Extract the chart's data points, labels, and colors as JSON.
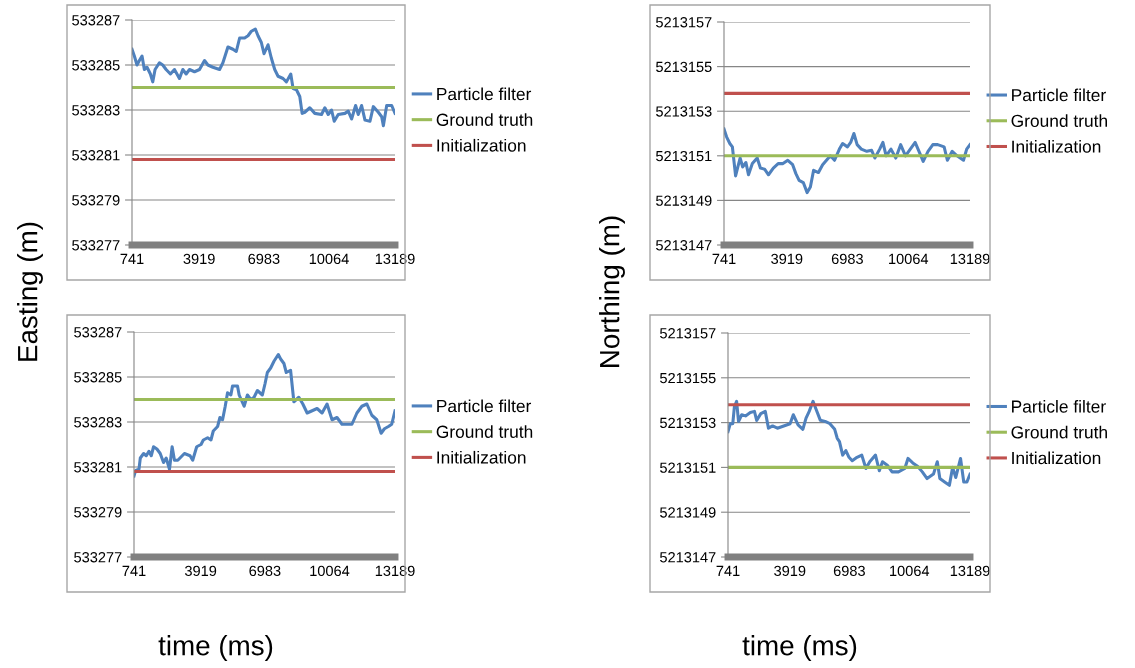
{
  "chart_data": [
    {
      "type": "line",
      "ylabel": "Easting (m)",
      "xlim": [
        741,
        13189
      ],
      "xticks": [
        741,
        3919,
        6983,
        10064,
        13189
      ],
      "ylim": [
        533277,
        533287
      ],
      "yticks": [
        533277,
        533279,
        533281,
        533283,
        533285,
        533287
      ],
      "grid": "y",
      "legend": "right",
      "series": [
        {
          "name": "Particle filter",
          "color": "#4f81bd",
          "x": [
            741,
            852,
            978,
            1089,
            1216,
            1326,
            1453,
            1611,
            1722,
            1833,
            2038,
            2196,
            2355,
            2560,
            2750,
            2987,
            3146,
            3304,
            3462,
            3699,
            3937,
            4174,
            4332,
            4569,
            4886,
            5044,
            5281,
            5519,
            5677,
            5835,
            6072,
            6231,
            6389,
            6579,
            6705,
            6863,
            6990,
            7180,
            7338,
            7496,
            7654,
            7892,
            8050,
            8256,
            8366,
            8524,
            8682,
            8793,
            8920,
            9157,
            9394,
            9711,
            9869,
            10027,
            10186,
            10312,
            10502,
            10818,
            10977,
            11135,
            11325,
            11451,
            11609,
            11768,
            12005,
            12163,
            12400,
            12559,
            12638,
            12796,
            13033,
            13189
          ],
          "values": [
            533285.7,
            533285.4,
            533285.0,
            533285.2,
            533285.4,
            533284.8,
            533284.9,
            533284.6,
            533284.25,
            533284.8,
            533285.1,
            533285.0,
            533284.8,
            533284.6,
            533284.8,
            533284.4,
            533284.8,
            533284.6,
            533284.8,
            533284.7,
            533284.8,
            533285.2,
            533285.0,
            533284.9,
            533284.8,
            533285.1,
            533285.8,
            533285.7,
            533285.6,
            533286.2,
            533286.2,
            533286.3,
            533286.5,
            533286.6,
            533286.3,
            533286.0,
            533285.5,
            533285.9,
            533285.3,
            533284.8,
            533284.5,
            533284.4,
            533284.25,
            533284.6,
            533283.95,
            533283.9,
            533283.6,
            533282.85,
            533282.9,
            533283.1,
            533282.85,
            533282.8,
            533283.1,
            533282.8,
            533283.0,
            533282.5,
            533282.8,
            533282.85,
            533282.95,
            533282.6,
            533283.2,
            533282.8,
            533283.2,
            533282.55,
            533282.5,
            533283.15,
            533282.9,
            533282.7,
            533282.3,
            533283.2,
            533283.2,
            533282.85
          ]
        },
        {
          "name": "Ground truth",
          "color": "#9bbb59",
          "x": [
            741,
            13189
          ],
          "values": [
            533284,
            533284
          ]
        },
        {
          "name": "Initialization",
          "color": "#c0504d",
          "x": [
            741,
            13189
          ],
          "values": [
            533280.8,
            533280.8
          ]
        }
      ]
    },
    {
      "type": "line",
      "ylabel": "Northing (m)",
      "xlim": [
        741,
        13189
      ],
      "xticks": [
        741,
        3919,
        6983,
        10064,
        13189
      ],
      "ylim": [
        5213147,
        5213157
      ],
      "yticks": [
        5213147,
        5213149,
        5213151,
        5213153,
        5213155,
        5213157
      ],
      "grid": "y",
      "legend": "right",
      "series": [
        {
          "name": "Particle filter",
          "color": "#4f81bd",
          "x": [
            741,
            871,
            1035,
            1165,
            1328,
            1442,
            1556,
            1687,
            1850,
            1980,
            2176,
            2420,
            2583,
            2795,
            2992,
            3236,
            3481,
            3726,
            3970,
            4215,
            4378,
            4541,
            4753,
            4949,
            5112,
            5275,
            5520,
            5732,
            5927,
            6123,
            6335,
            6580,
            6743,
            6988,
            7151,
            7314,
            7477,
            7689,
            7967,
            8211,
            8374,
            8619,
            8782,
            8945,
            9190,
            9434,
            9679,
            9924,
            10168,
            10413,
            10657,
            10821,
            11065,
            11310,
            11554,
            11880,
            12044,
            12288,
            12533,
            12859,
            13022,
            13189
          ],
          "values": [
            5213152.2,
            5213151.85,
            5213151.55,
            5213151.4,
            5213150.1,
            5213150.5,
            5213150.9,
            5213150.5,
            5213150.7,
            5213150.15,
            5213150.65,
            5213150.9,
            5213150.45,
            5213150.4,
            5213150.15,
            5213150.45,
            5213150.65,
            5213150.65,
            5213150.8,
            5213150.6,
            5213150.2,
            5213149.9,
            5213149.8,
            5213149.35,
            5213149.6,
            5213150.35,
            5213150.25,
            5213150.6,
            5213150.8,
            5213151.0,
            5213150.8,
            5213151.3,
            5213151.55,
            5213151.4,
            5213151.6,
            5213152.0,
            5213151.5,
            5213151.3,
            5213151.2,
            5213151.25,
            5213150.9,
            5213151.3,
            5213151.6,
            5213151.0,
            5213151.3,
            5213150.9,
            5213151.5,
            5213151.0,
            5213151.3,
            5213151.6,
            5213151.1,
            5213150.75,
            5213151.2,
            5213151.5,
            5213151.5,
            5213151.4,
            5213150.8,
            5213151.2,
            5213151.0,
            5213150.8,
            5213151.3,
            5213151.5
          ]
        },
        {
          "name": "Ground truth",
          "color": "#9bbb59",
          "x": [
            741,
            13189
          ],
          "values": [
            5213151,
            5213151
          ]
        },
        {
          "name": "Initialization",
          "color": "#c0504d",
          "x": [
            741,
            13189
          ],
          "values": [
            5213153.8,
            5213153.8
          ]
        }
      ]
    },
    {
      "type": "line",
      "xlabel": "time (ms)",
      "xlim": [
        741,
        13189
      ],
      "xticks": [
        741,
        3919,
        6983,
        10064,
        13189
      ],
      "ylim": [
        533277,
        533287
      ],
      "yticks": [
        533277,
        533279,
        533281,
        533283,
        533285,
        533287
      ],
      "grid": "y",
      "legend": "right",
      "series": [
        {
          "name": "Particle filter",
          "color": "#4f81bd",
          "x": [
            741,
            820,
            978,
            1042,
            1200,
            1326,
            1453,
            1564,
            1674,
            1833,
            1991,
            2150,
            2276,
            2434,
            2560,
            2671,
            2829,
            3146,
            3415,
            3541,
            3731,
            3937,
            4048,
            4253,
            4411,
            4522,
            4728,
            4839,
            4965,
            5092,
            5202,
            5361,
            5440,
            5677,
            5756,
            5993,
            6151,
            6310,
            6468,
            6626,
            6863,
            6990,
            7101,
            7259,
            7417,
            7623,
            7734,
            7892,
            8003,
            8209,
            8366,
            8603,
            8793,
            8999,
            9236,
            9473,
            9711,
            9948,
            10186,
            10423,
            10660,
            10897,
            11135,
            11372,
            11609,
            11847,
            12084,
            12321,
            12527,
            12685,
            12875,
            13033,
            13189
          ],
          "values": [
            533280.6,
            533280.85,
            533280.9,
            533281.4,
            533281.6,
            533281.5,
            533281.7,
            533281.5,
            533281.9,
            533281.8,
            533281.6,
            533281.2,
            533281.4,
            533280.9,
            533281.9,
            533281.3,
            533281.3,
            533281.6,
            533281.5,
            533281.3,
            533281.9,
            533282.0,
            533282.2,
            533282.3,
            533282.2,
            533282.6,
            533282.8,
            533283.2,
            533283.1,
            533283.7,
            533284.3,
            533284.2,
            533284.6,
            533284.6,
            533284.2,
            533283.7,
            533284.2,
            533284.0,
            533284.1,
            533284.4,
            533284.2,
            533284.7,
            533285.2,
            533285.4,
            533285.7,
            533286.0,
            533285.8,
            533285.6,
            533285.2,
            533285.3,
            533283.9,
            533284.1,
            533283.8,
            533283.4,
            533283.5,
            533283.6,
            533283.4,
            533283.8,
            533283.1,
            533283.2,
            533282.9,
            533282.9,
            533282.9,
            533283.4,
            533283.7,
            533283.8,
            533283.3,
            533283.1,
            533282.5,
            533282.7,
            533282.8,
            533282.9,
            533283.5
          ]
        },
        {
          "name": "Ground truth",
          "color": "#9bbb59",
          "x": [
            741,
            13189
          ],
          "values": [
            533284,
            533284
          ]
        },
        {
          "name": "Initialization",
          "color": "#c0504d",
          "x": [
            741,
            13189
          ],
          "values": [
            533280.8,
            533280.8
          ]
        }
      ]
    },
    {
      "type": "line",
      "xlabel": "time (ms)",
      "xlim": [
        741,
        13189
      ],
      "xticks": [
        741,
        3919,
        6983,
        10064,
        13189
      ],
      "ylim": [
        5213147,
        5213157
      ],
      "yticks": [
        5213147,
        5213149,
        5213151,
        5213153,
        5213155,
        5213157
      ],
      "grid": "y",
      "legend": "right",
      "series": [
        {
          "name": "Particle filter",
          "color": "#4f81bd",
          "x": [
            741,
            856,
            987,
            1069,
            1184,
            1282,
            1446,
            1642,
            1888,
            2101,
            2216,
            2428,
            2658,
            2822,
            3034,
            3280,
            3608,
            3935,
            4099,
            4345,
            4591,
            4755,
            4918,
            5115,
            5246,
            5492,
            5738,
            5983,
            6229,
            6360,
            6475,
            6639,
            6803,
            6966,
            7130,
            7376,
            7622,
            7835,
            8032,
            8327,
            8524,
            8688,
            8934,
            9180,
            9507,
            9835,
            9999,
            10245,
            10490,
            10736,
            10982,
            11310,
            11507,
            11638,
            11884,
            12129,
            12293,
            12457,
            12703,
            12867,
            13031,
            13189
          ],
          "values": [
            5213152.6,
            5213152.95,
            5213152.95,
            5213153.7,
            5213153.95,
            5213153.05,
            5213153.35,
            5213153.3,
            5213153.45,
            5213153.5,
            5213153.1,
            5213153.4,
            5213153.5,
            5213152.75,
            5213152.85,
            5213152.75,
            5213152.85,
            5213152.95,
            5213153.35,
            5213152.9,
            5213152.7,
            5213153.2,
            5213153.5,
            5213153.95,
            5213153.65,
            5213153.1,
            5213153.05,
            5213152.95,
            5213152.7,
            5213152.3,
            5213152.15,
            5213151.55,
            5213151.75,
            5213151.45,
            5213151.3,
            5213151.45,
            5213151.55,
            5213150.95,
            5213151.25,
            5213151.55,
            5213150.85,
            5213151.25,
            5213151.1,
            5213150.8,
            5213150.8,
            5213150.95,
            5213151.4,
            5213151.2,
            5213151.05,
            5213150.8,
            5213150.5,
            5213150.7,
            5213151.25,
            5213150.5,
            5213150.35,
            5213150.2,
            5213151.0,
            5213150.55,
            5213151.4,
            5213150.35,
            5213150.35,
            5213150.7
          ]
        },
        {
          "name": "Ground truth",
          "color": "#9bbb59",
          "x": [
            741,
            13189
          ],
          "values": [
            5213151,
            5213151
          ]
        },
        {
          "name": "Initialization",
          "color": "#c0504d",
          "x": [
            741,
            13189
          ],
          "values": [
            5213153.8,
            5213153.8
          ]
        }
      ]
    }
  ]
}
